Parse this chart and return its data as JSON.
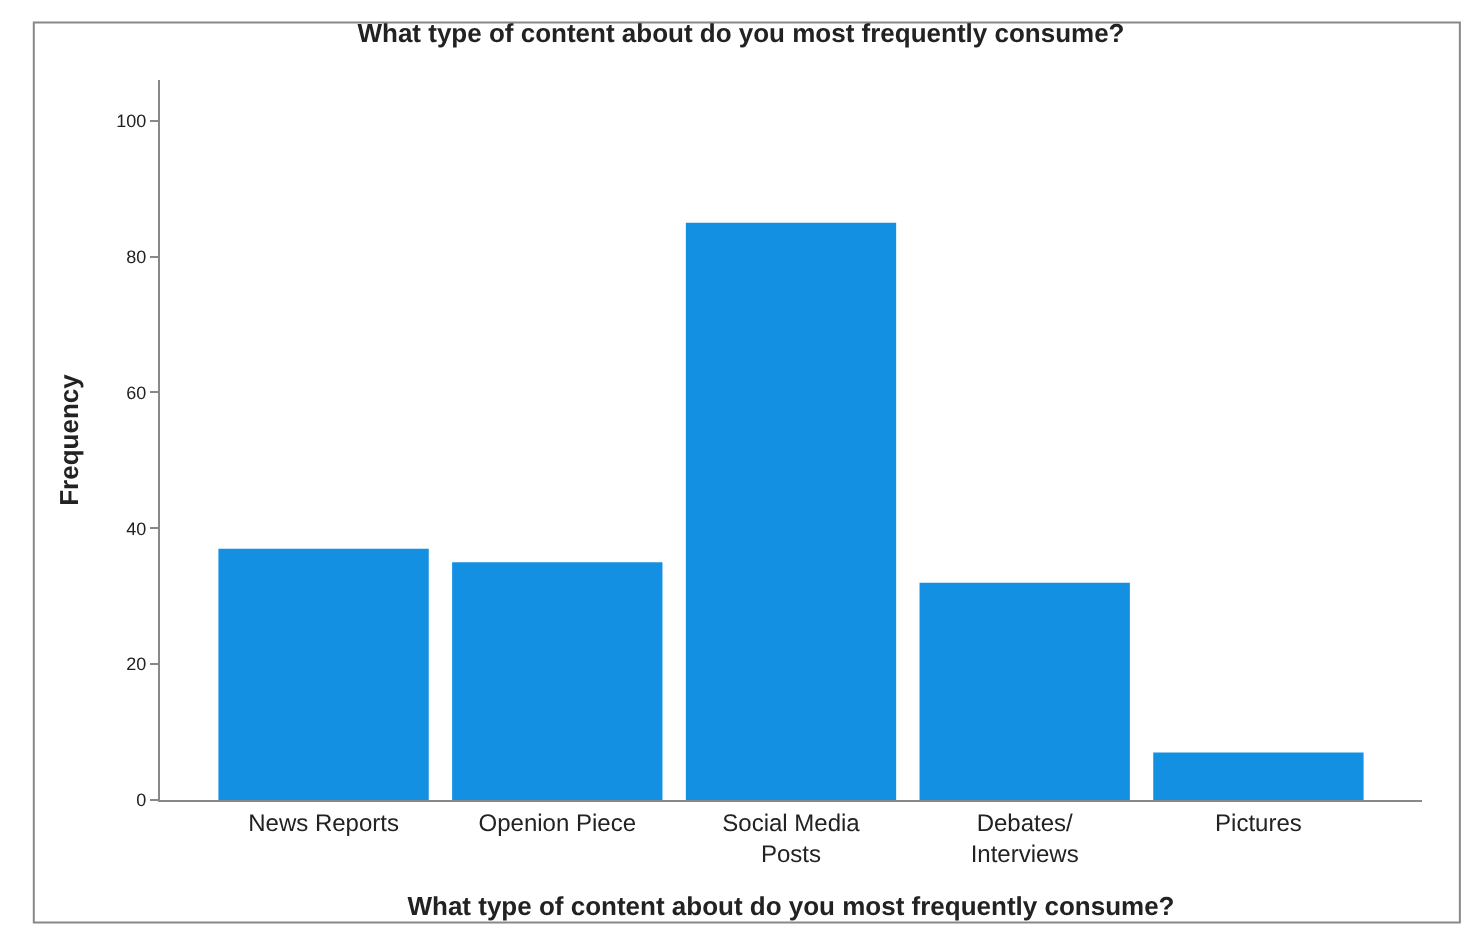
{
  "chart_data": {
    "type": "bar",
    "title": "What type of content about do you most frequently consume?",
    "xlabel": "What type of content about do you most frequently consume?",
    "ylabel": "Frequency",
    "categories": [
      "News Reports",
      "Openion Piece",
      "Social Media\nPosts",
      "Debates/\nInterviews",
      "Pictures"
    ],
    "values": [
      37,
      35,
      85,
      32,
      7
    ],
    "color": "#1490e3",
    "ylim": [
      0,
      106
    ],
    "yticks": [
      0,
      20,
      40,
      60,
      80,
      100
    ]
  }
}
